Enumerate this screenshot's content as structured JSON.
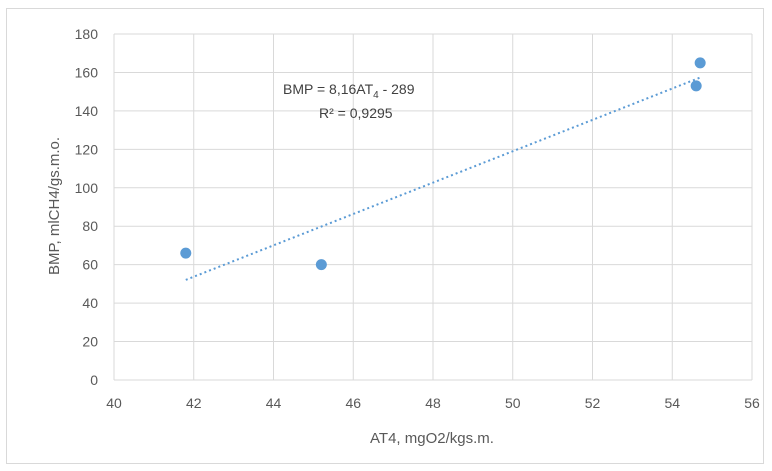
{
  "chart_data": {
    "type": "scatter",
    "xlabel": "AT4, mgO2/kgs.m.",
    "ylabel": "BMP, mlCH4/gs.m.o.",
    "xlim": [
      40,
      56
    ],
    "ylim": [
      0,
      180
    ],
    "x_ticks": [
      40,
      42,
      44,
      46,
      48,
      50,
      52,
      54,
      56
    ],
    "y_ticks": [
      0,
      20,
      40,
      60,
      80,
      100,
      120,
      140,
      160,
      180
    ],
    "grid": true,
    "legend": "none",
    "series": [
      {
        "points": [
          {
            "x": 41.8,
            "y": 66
          },
          {
            "x": 45.2,
            "y": 60
          },
          {
            "x": 54.6,
            "y": 153
          },
          {
            "x": 54.7,
            "y": 165
          }
        ],
        "color": "#5b9bd5"
      }
    ],
    "trendline": {
      "type": "linear",
      "slope": 8.16,
      "intercept": -289,
      "x_range": [
        41.8,
        54.7
      ],
      "style": "dotted",
      "color": "#5b9bd5"
    },
    "annotations": {
      "equation_prefix": "BMP = 8,16AT",
      "equation_sub": "4",
      "equation_suffix": " - 289",
      "r_squared": "R² = 0,9295"
    }
  }
}
